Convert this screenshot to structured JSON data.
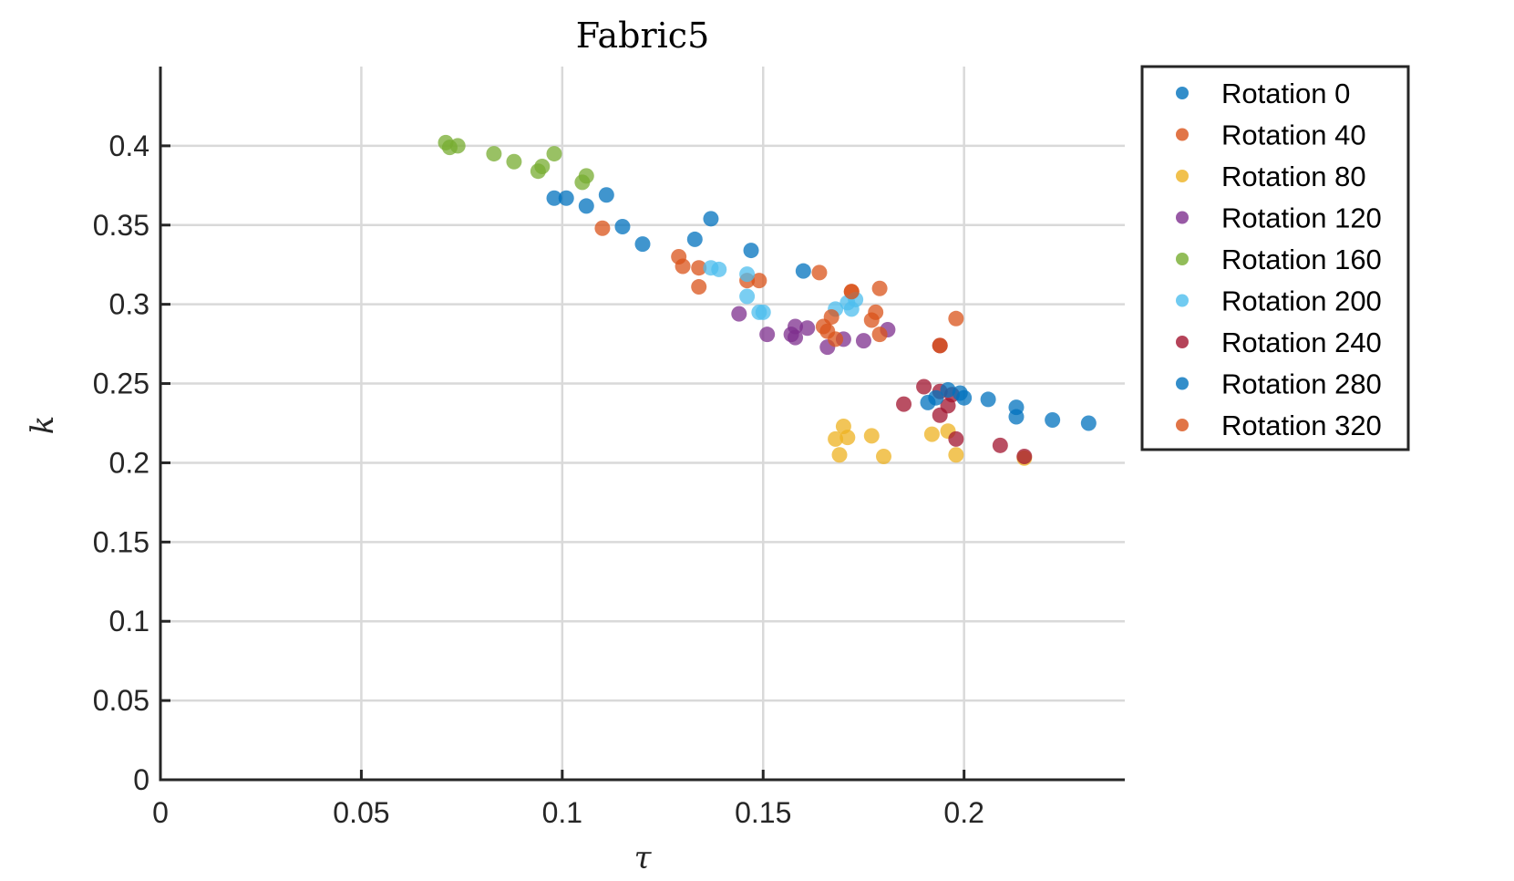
{
  "chart_data": {
    "type": "scatter",
    "title": "Fabric5",
    "xlabel": "τ",
    "ylabel": "k",
    "xlim": [
      0,
      0.24
    ],
    "ylim": [
      0,
      0.45
    ],
    "xticks": [
      0,
      0.05,
      0.1,
      0.15,
      0.2
    ],
    "xtick_labels": [
      "0",
      "0.05",
      "0.1",
      "0.15",
      "0.2"
    ],
    "yticks": [
      0,
      0.05,
      0.1,
      0.15,
      0.2,
      0.25,
      0.3,
      0.35,
      0.4
    ],
    "ytick_labels": [
      "0",
      "0.05",
      "0.1",
      "0.15",
      "0.2",
      "0.25",
      "0.3",
      "0.35",
      "0.4"
    ],
    "grid": true,
    "legend_position": "outside-right-top",
    "series": [
      {
        "name": "Rotation 0",
        "color": "#0072BD",
        "points": [
          [
            0.098,
            0.367
          ],
          [
            0.101,
            0.367
          ],
          [
            0.106,
            0.362
          ],
          [
            0.111,
            0.369
          ],
          [
            0.115,
            0.349
          ],
          [
            0.12,
            0.338
          ],
          [
            0.133,
            0.341
          ],
          [
            0.137,
            0.354
          ],
          [
            0.147,
            0.334
          ],
          [
            0.16,
            0.321
          ]
        ]
      },
      {
        "name": "Rotation 40",
        "color": "#D95319",
        "points": [
          [
            0.11,
            0.348
          ],
          [
            0.129,
            0.33
          ],
          [
            0.13,
            0.324
          ],
          [
            0.134,
            0.323
          ],
          [
            0.134,
            0.311
          ],
          [
            0.146,
            0.315
          ],
          [
            0.149,
            0.315
          ],
          [
            0.164,
            0.32
          ],
          [
            0.172,
            0.308
          ],
          [
            0.179,
            0.31
          ]
        ]
      },
      {
        "name": "Rotation 80",
        "color": "#EDB120",
        "points": [
          [
            0.168,
            0.215
          ],
          [
            0.169,
            0.205
          ],
          [
            0.17,
            0.223
          ],
          [
            0.171,
            0.216
          ],
          [
            0.177,
            0.217
          ],
          [
            0.18,
            0.204
          ],
          [
            0.192,
            0.218
          ],
          [
            0.196,
            0.22
          ],
          [
            0.198,
            0.205
          ],
          [
            0.215,
            0.203
          ]
        ]
      },
      {
        "name": "Rotation 120",
        "color": "#7E2F8E",
        "points": [
          [
            0.144,
            0.294
          ],
          [
            0.151,
            0.281
          ],
          [
            0.157,
            0.281
          ],
          [
            0.158,
            0.286
          ],
          [
            0.158,
            0.279
          ],
          [
            0.161,
            0.285
          ],
          [
            0.166,
            0.273
          ],
          [
            0.17,
            0.278
          ],
          [
            0.175,
            0.277
          ],
          [
            0.181,
            0.284
          ]
        ]
      },
      {
        "name": "Rotation 160",
        "color": "#77AC30",
        "points": [
          [
            0.071,
            0.402
          ],
          [
            0.072,
            0.399
          ],
          [
            0.074,
            0.4
          ],
          [
            0.083,
            0.395
          ],
          [
            0.088,
            0.39
          ],
          [
            0.094,
            0.384
          ],
          [
            0.095,
            0.387
          ],
          [
            0.098,
            0.395
          ],
          [
            0.105,
            0.377
          ],
          [
            0.106,
            0.381
          ]
        ]
      },
      {
        "name": "Rotation 200",
        "color": "#4DBEEE",
        "points": [
          [
            0.137,
            0.323
          ],
          [
            0.139,
            0.322
          ],
          [
            0.146,
            0.319
          ],
          [
            0.146,
            0.305
          ],
          [
            0.149,
            0.295
          ],
          [
            0.15,
            0.295
          ],
          [
            0.168,
            0.297
          ],
          [
            0.171,
            0.301
          ],
          [
            0.172,
            0.297
          ],
          [
            0.173,
            0.303
          ]
        ]
      },
      {
        "name": "Rotation 240",
        "color": "#A2142F",
        "points": [
          [
            0.185,
            0.237
          ],
          [
            0.19,
            0.248
          ],
          [
            0.194,
            0.245
          ],
          [
            0.194,
            0.23
          ],
          [
            0.196,
            0.236
          ],
          [
            0.197,
            0.243
          ],
          [
            0.198,
            0.215
          ],
          [
            0.194,
            0.274
          ],
          [
            0.209,
            0.211
          ],
          [
            0.215,
            0.204
          ]
        ]
      },
      {
        "name": "Rotation 280",
        "color": "#0072BD",
        "points": [
          [
            0.191,
            0.238
          ],
          [
            0.193,
            0.241
          ],
          [
            0.196,
            0.246
          ],
          [
            0.199,
            0.244
          ],
          [
            0.2,
            0.241
          ],
          [
            0.206,
            0.24
          ],
          [
            0.213,
            0.235
          ],
          [
            0.213,
            0.229
          ],
          [
            0.222,
            0.227
          ],
          [
            0.231,
            0.225
          ]
        ]
      },
      {
        "name": "Rotation 320",
        "color": "#D95319",
        "points": [
          [
            0.165,
            0.286
          ],
          [
            0.166,
            0.283
          ],
          [
            0.167,
            0.292
          ],
          [
            0.168,
            0.278
          ],
          [
            0.177,
            0.29
          ],
          [
            0.178,
            0.295
          ],
          [
            0.179,
            0.281
          ],
          [
            0.194,
            0.274
          ],
          [
            0.198,
            0.291
          ],
          [
            0.172,
            0.308
          ]
        ]
      }
    ]
  }
}
